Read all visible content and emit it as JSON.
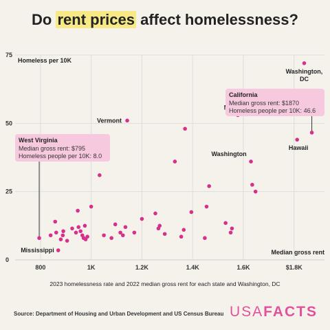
{
  "title": {
    "before": "Do ",
    "highlight": "rent prices",
    "after": " affect homelessness?"
  },
  "source": "Source: Department of Housing and Urban Development and US Census Bureau",
  "logo": {
    "part1": "USA",
    "part2": "FACTS"
  },
  "colors": {
    "point": "#d6318a",
    "callout_bg": "#f7c9df",
    "highlight": "#f7ea86",
    "grid": "#dddddd"
  },
  "chart_data": {
    "type": "scatter",
    "title": "Do rent prices affect homelessness?",
    "xlabel": "Median gross rent",
    "ylabel": "Homeless per 10K",
    "caption": "2023 homelessness rate and 2022 median gross rent for each state and Washington, DC",
    "xlim": [
      700,
      1920
    ],
    "ylim": [
      0,
      75
    ],
    "x_ticks": [
      {
        "value": 800,
        "label": "800"
      },
      {
        "value": 1000,
        "label": "1K"
      },
      {
        "value": 1200,
        "label": "1.2K"
      },
      {
        "value": 1400,
        "label": "1.4K"
      },
      {
        "value": 1600,
        "label": "1.6K"
      },
      {
        "value": 1800,
        "label": "$1.8K"
      }
    ],
    "y_ticks": [
      {
        "value": 0,
        "label": "0"
      },
      {
        "value": 25,
        "label": "25"
      },
      {
        "value": 50,
        "label": "50"
      },
      {
        "value": 75,
        "label": "75"
      }
    ],
    "grid": true,
    "points": [
      {
        "x": 795,
        "y": 8.0,
        "label": "West Virginia"
      },
      {
        "x": 870,
        "y": 3.5,
        "label": "Mississippi"
      },
      {
        "x": 1142,
        "y": 51,
        "label": "Vermont"
      },
      {
        "x": 1840,
        "y": 72,
        "label": "Washington, DC"
      },
      {
        "x": 1578,
        "y": 53,
        "label": "New York"
      },
      {
        "x": 1870,
        "y": 46.6,
        "label": "California"
      },
      {
        "x": 1812,
        "y": 44,
        "label": "Hawaii"
      },
      {
        "x": 1630,
        "y": 36,
        "label": "Washington"
      },
      {
        "x": 840,
        "y": 9
      },
      {
        "x": 858,
        "y": 14
      },
      {
        "x": 862,
        "y": 10
      },
      {
        "x": 880,
        "y": 7.5
      },
      {
        "x": 888,
        "y": 9
      },
      {
        "x": 890,
        "y": 10.5
      },
      {
        "x": 905,
        "y": 7
      },
      {
        "x": 925,
        "y": 11.5
      },
      {
        "x": 940,
        "y": 10
      },
      {
        "x": 947,
        "y": 18
      },
      {
        "x": 950,
        "y": 12
      },
      {
        "x": 958,
        "y": 10.5
      },
      {
        "x": 965,
        "y": 9
      },
      {
        "x": 970,
        "y": 8
      },
      {
        "x": 975,
        "y": 12.5
      },
      {
        "x": 978,
        "y": 7.5
      },
      {
        "x": 985,
        "y": 8.5
      },
      {
        "x": 1000,
        "y": 19.5
      },
      {
        "x": 1033,
        "y": 31
      },
      {
        "x": 1050,
        "y": 9
      },
      {
        "x": 1080,
        "y": 8
      },
      {
        "x": 1095,
        "y": 13
      },
      {
        "x": 1115,
        "y": 10
      },
      {
        "x": 1125,
        "y": 9
      },
      {
        "x": 1135,
        "y": 12
      },
      {
        "x": 1170,
        "y": 10
      },
      {
        "x": 1200,
        "y": 15
      },
      {
        "x": 1253,
        "y": 17
      },
      {
        "x": 1265,
        "y": 11.5
      },
      {
        "x": 1270,
        "y": 12.5
      },
      {
        "x": 1290,
        "y": 9.5
      },
      {
        "x": 1330,
        "y": 36
      },
      {
        "x": 1355,
        "y": 8.5
      },
      {
        "x": 1365,
        "y": 11
      },
      {
        "x": 1370,
        "y": 48
      },
      {
        "x": 1395,
        "y": 17.5
      },
      {
        "x": 1448,
        "y": 8
      },
      {
        "x": 1455,
        "y": 19.5
      },
      {
        "x": 1465,
        "y": 27
      },
      {
        "x": 1530,
        "y": 13.5
      },
      {
        "x": 1550,
        "y": 10
      },
      {
        "x": 1555,
        "y": 11.5
      },
      {
        "x": 1635,
        "y": 27.5
      },
      {
        "x": 1648,
        "y": 25
      }
    ],
    "annotations": [
      {
        "label": "West Virginia",
        "lines": [
          "Median gross rent: $795",
          "Homeless people per 10K: 8.0"
        ]
      },
      {
        "label": "California",
        "lines": [
          "Median gross rent: $1870",
          "Homeless people per 10K: 46.6"
        ]
      }
    ]
  }
}
